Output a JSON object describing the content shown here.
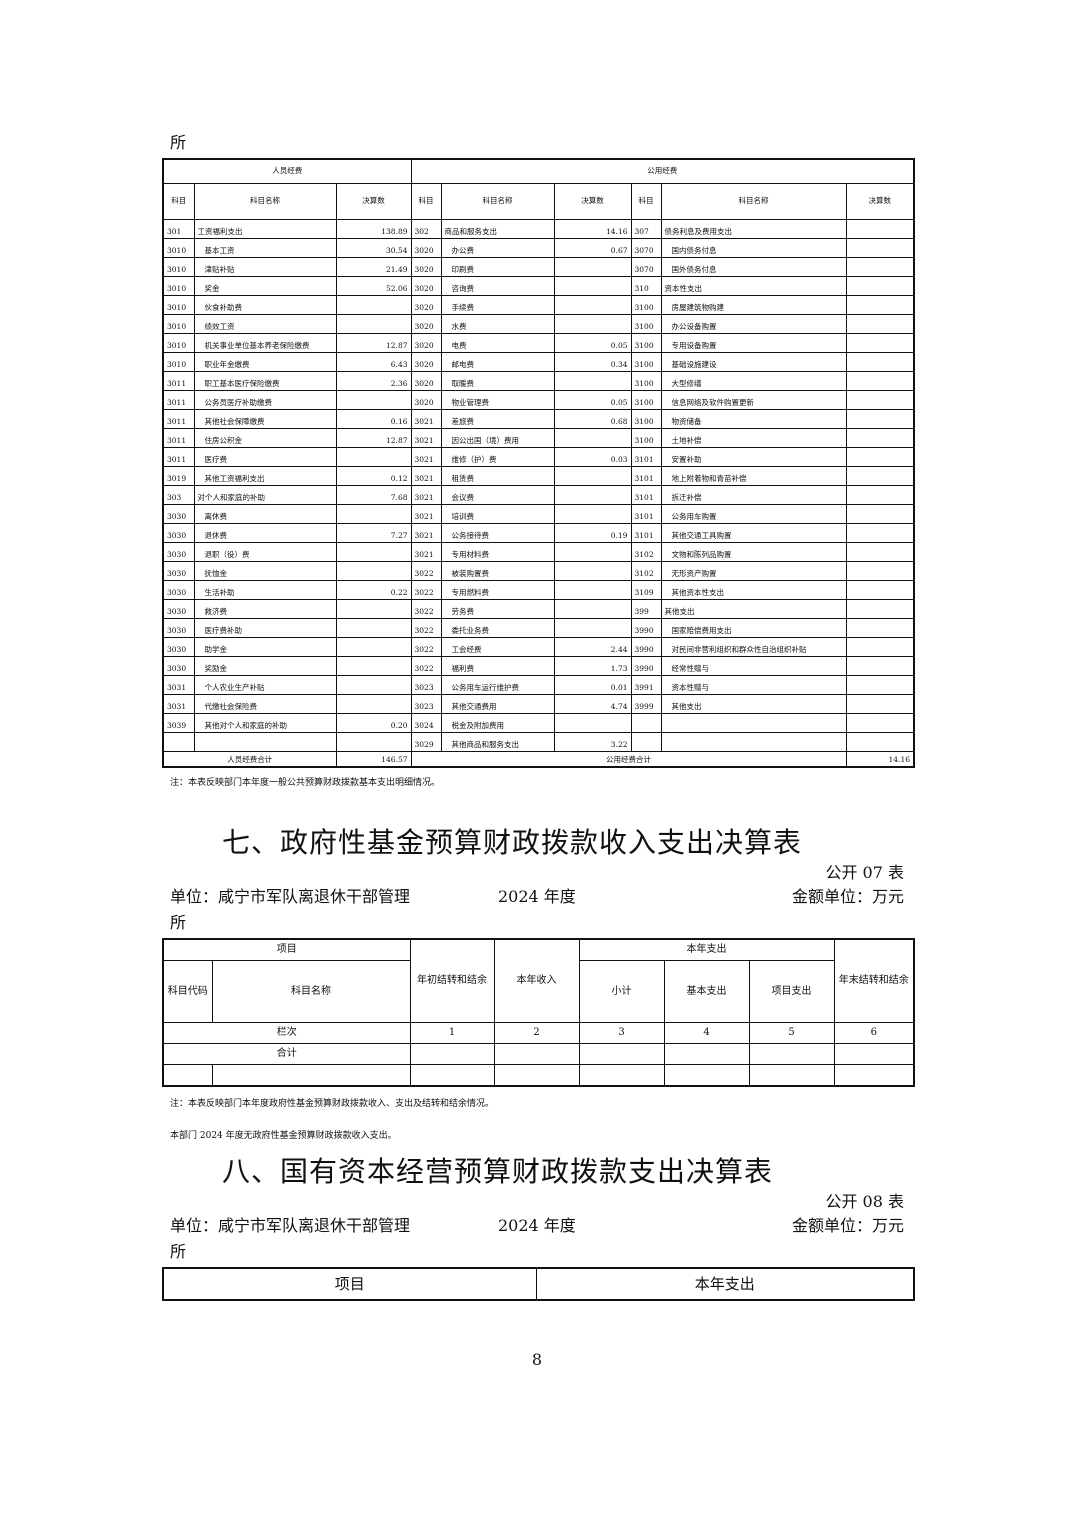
{
  "top_fragment": "所",
  "table6": {
    "group_personnel": "人员经费",
    "group_public": "公用经费",
    "col_code": "科目",
    "col_name": "科目名称",
    "col_amount": "决算数",
    "rows": [
      [
        "301",
        "工资福利支出",
        "138.89",
        "302",
        "商品和服务支出",
        "14.16",
        "307",
        "债务利息及费用支出",
        ""
      ],
      [
        "3010",
        "基本工资",
        "30.54",
        "3020",
        "办公费",
        "0.67",
        "3070",
        "国内债务付息",
        ""
      ],
      [
        "3010",
        "津贴补贴",
        "21.49",
        "3020",
        "印刷费",
        "",
        "3070",
        "国外债务付息",
        ""
      ],
      [
        "3010",
        "奖金",
        "52.06",
        "3020",
        "咨询费",
        "",
        "310",
        "资本性支出",
        ""
      ],
      [
        "3010",
        "伙食补助费",
        "",
        "3020",
        "手续费",
        "",
        "3100",
        "房屋建筑物购建",
        ""
      ],
      [
        "3010",
        "绩效工资",
        "",
        "3020",
        "水费",
        "",
        "3100",
        "办公设备购置",
        ""
      ],
      [
        "3010",
        "机关事业单位基本养老保险缴费",
        "12.87",
        "3020",
        "电费",
        "0.05",
        "3100",
        "专用设备购置",
        ""
      ],
      [
        "3010",
        "职业年金缴费",
        "6.43",
        "3020",
        "邮电费",
        "0.34",
        "3100",
        "基础设施建设",
        ""
      ],
      [
        "3011",
        "职工基本医疗保险缴费",
        "2.36",
        "3020",
        "取暖费",
        "",
        "3100",
        "大型修缮",
        ""
      ],
      [
        "3011",
        "公务员医疗补助缴费",
        "",
        "3020",
        "物业管理费",
        "0.05",
        "3100",
        "信息网络及软件购置更新",
        ""
      ],
      [
        "3011",
        "其他社会保障缴费",
        "0.16",
        "3021",
        "差旅费",
        "0.68",
        "3100",
        "物资储备",
        ""
      ],
      [
        "3011",
        "住房公积金",
        "12.87",
        "3021",
        "因公出国（境）费用",
        "",
        "3100",
        "土地补偿",
        ""
      ],
      [
        "3011",
        "医疗费",
        "",
        "3021",
        "维修（护）费",
        "0.03",
        "3101",
        "安置补助",
        ""
      ],
      [
        "3019",
        "其他工资福利支出",
        "0.12",
        "3021",
        "租赁费",
        "",
        "3101",
        "地上附着物和青苗补偿",
        ""
      ],
      [
        "303",
        "对个人和家庭的补助",
        "7.68",
        "3021",
        "会议费",
        "",
        "3101",
        "拆迁补偿",
        ""
      ],
      [
        "3030",
        "离休费",
        "",
        "3021",
        "培训费",
        "",
        "3101",
        "公务用车购置",
        ""
      ],
      [
        "3030",
        "退休费",
        "7.27",
        "3021",
        "公务接待费",
        "0.19",
        "3101",
        "其他交通工具购置",
        ""
      ],
      [
        "3030",
        "退职（役）费",
        "",
        "3021",
        "专用材料费",
        "",
        "3102",
        "文物和陈列品购置",
        ""
      ],
      [
        "3030",
        "抚恤金",
        "",
        "3022",
        "被装购置费",
        "",
        "3102",
        "无形资产购置",
        ""
      ],
      [
        "3030",
        "生活补助",
        "0.22",
        "3022",
        "专用燃料费",
        "",
        "3109",
        "其他资本性支出",
        ""
      ],
      [
        "3030",
        "救济费",
        "",
        "3022",
        "劳务费",
        "",
        "399",
        "其他支出",
        ""
      ],
      [
        "3030",
        "医疗费补助",
        "",
        "3022",
        "委托业务费",
        "",
        "3990",
        "国家赔偿费用支出",
        ""
      ],
      [
        "3030",
        "助学金",
        "",
        "3022",
        "工会经费",
        "2.44",
        "3990",
        "对民间非营利组织和群众性自治组织补贴",
        ""
      ],
      [
        "3030",
        "奖励金",
        "",
        "3022",
        "福利费",
        "1.73",
        "3990",
        "经常性赠与",
        ""
      ],
      [
        "3031",
        "个人农业生产补贴",
        "",
        "3023",
        "公务用车运行维护费",
        "0.01",
        "3991",
        "资本性赠与",
        ""
      ],
      [
        "3031",
        "代缴社会保险费",
        "",
        "3023",
        "其他交通费用",
        "4.74",
        "3999",
        "其他支出",
        ""
      ],
      [
        "3039",
        "其他对个人和家庭的补助",
        "0.20",
        "3024",
        "税金及附加费用",
        "",
        "",
        "",
        ""
      ],
      [
        "",
        "",
        "",
        "3029",
        "其他商品和服务支出",
        "3.22",
        "",
        "",
        ""
      ]
    ],
    "total_personnel_label": "人员经费合计",
    "total_personnel": "146.57",
    "total_public_label": "公用经费合计",
    "total_public": "14.16",
    "note": "注：本表反映部门本年度一般公共预算财政拨款基本支出明细情况。"
  },
  "section7": {
    "title": "七、政府性基金预算财政拨款收入支出决算表",
    "table_no": "公开 07 表",
    "unit": "单位：咸宁市军队离退休干部管理",
    "year": "2024 年度",
    "amount_unit": "金额单位：万元",
    "unit_cont": "所",
    "h_item": "项目",
    "h_code": "科目代码",
    "h_name": "科目名称",
    "h_begin": "年初结转和结余",
    "h_income": "本年收入",
    "h_expense": "本年支出",
    "h_subtotal": "小计",
    "h_basic": "基本支出",
    "h_project": "项目支出",
    "h_end": "年末结转和结余",
    "row_index_label": "栏次",
    "row_index": [
      "1",
      "2",
      "3",
      "4",
      "5",
      "6"
    ],
    "row_total_label": "合计",
    "note": "注：本表反映部门本年度政府性基金预算财政拨款收入、支出及结转和结余情况。",
    "statement": "本部门 2024 年度无政府性基金预算财政拨款收入支出。"
  },
  "section8": {
    "title": "八、国有资本经营预算财政拨款支出决算表",
    "table_no": "公开 08 表",
    "unit": "单位：咸宁市军队离退休干部管理",
    "year": "2024 年度",
    "amount_unit": "金额单位：万元",
    "unit_cont": "所",
    "h_item": "项目",
    "h_expense": "本年支出"
  },
  "page_number": "8"
}
